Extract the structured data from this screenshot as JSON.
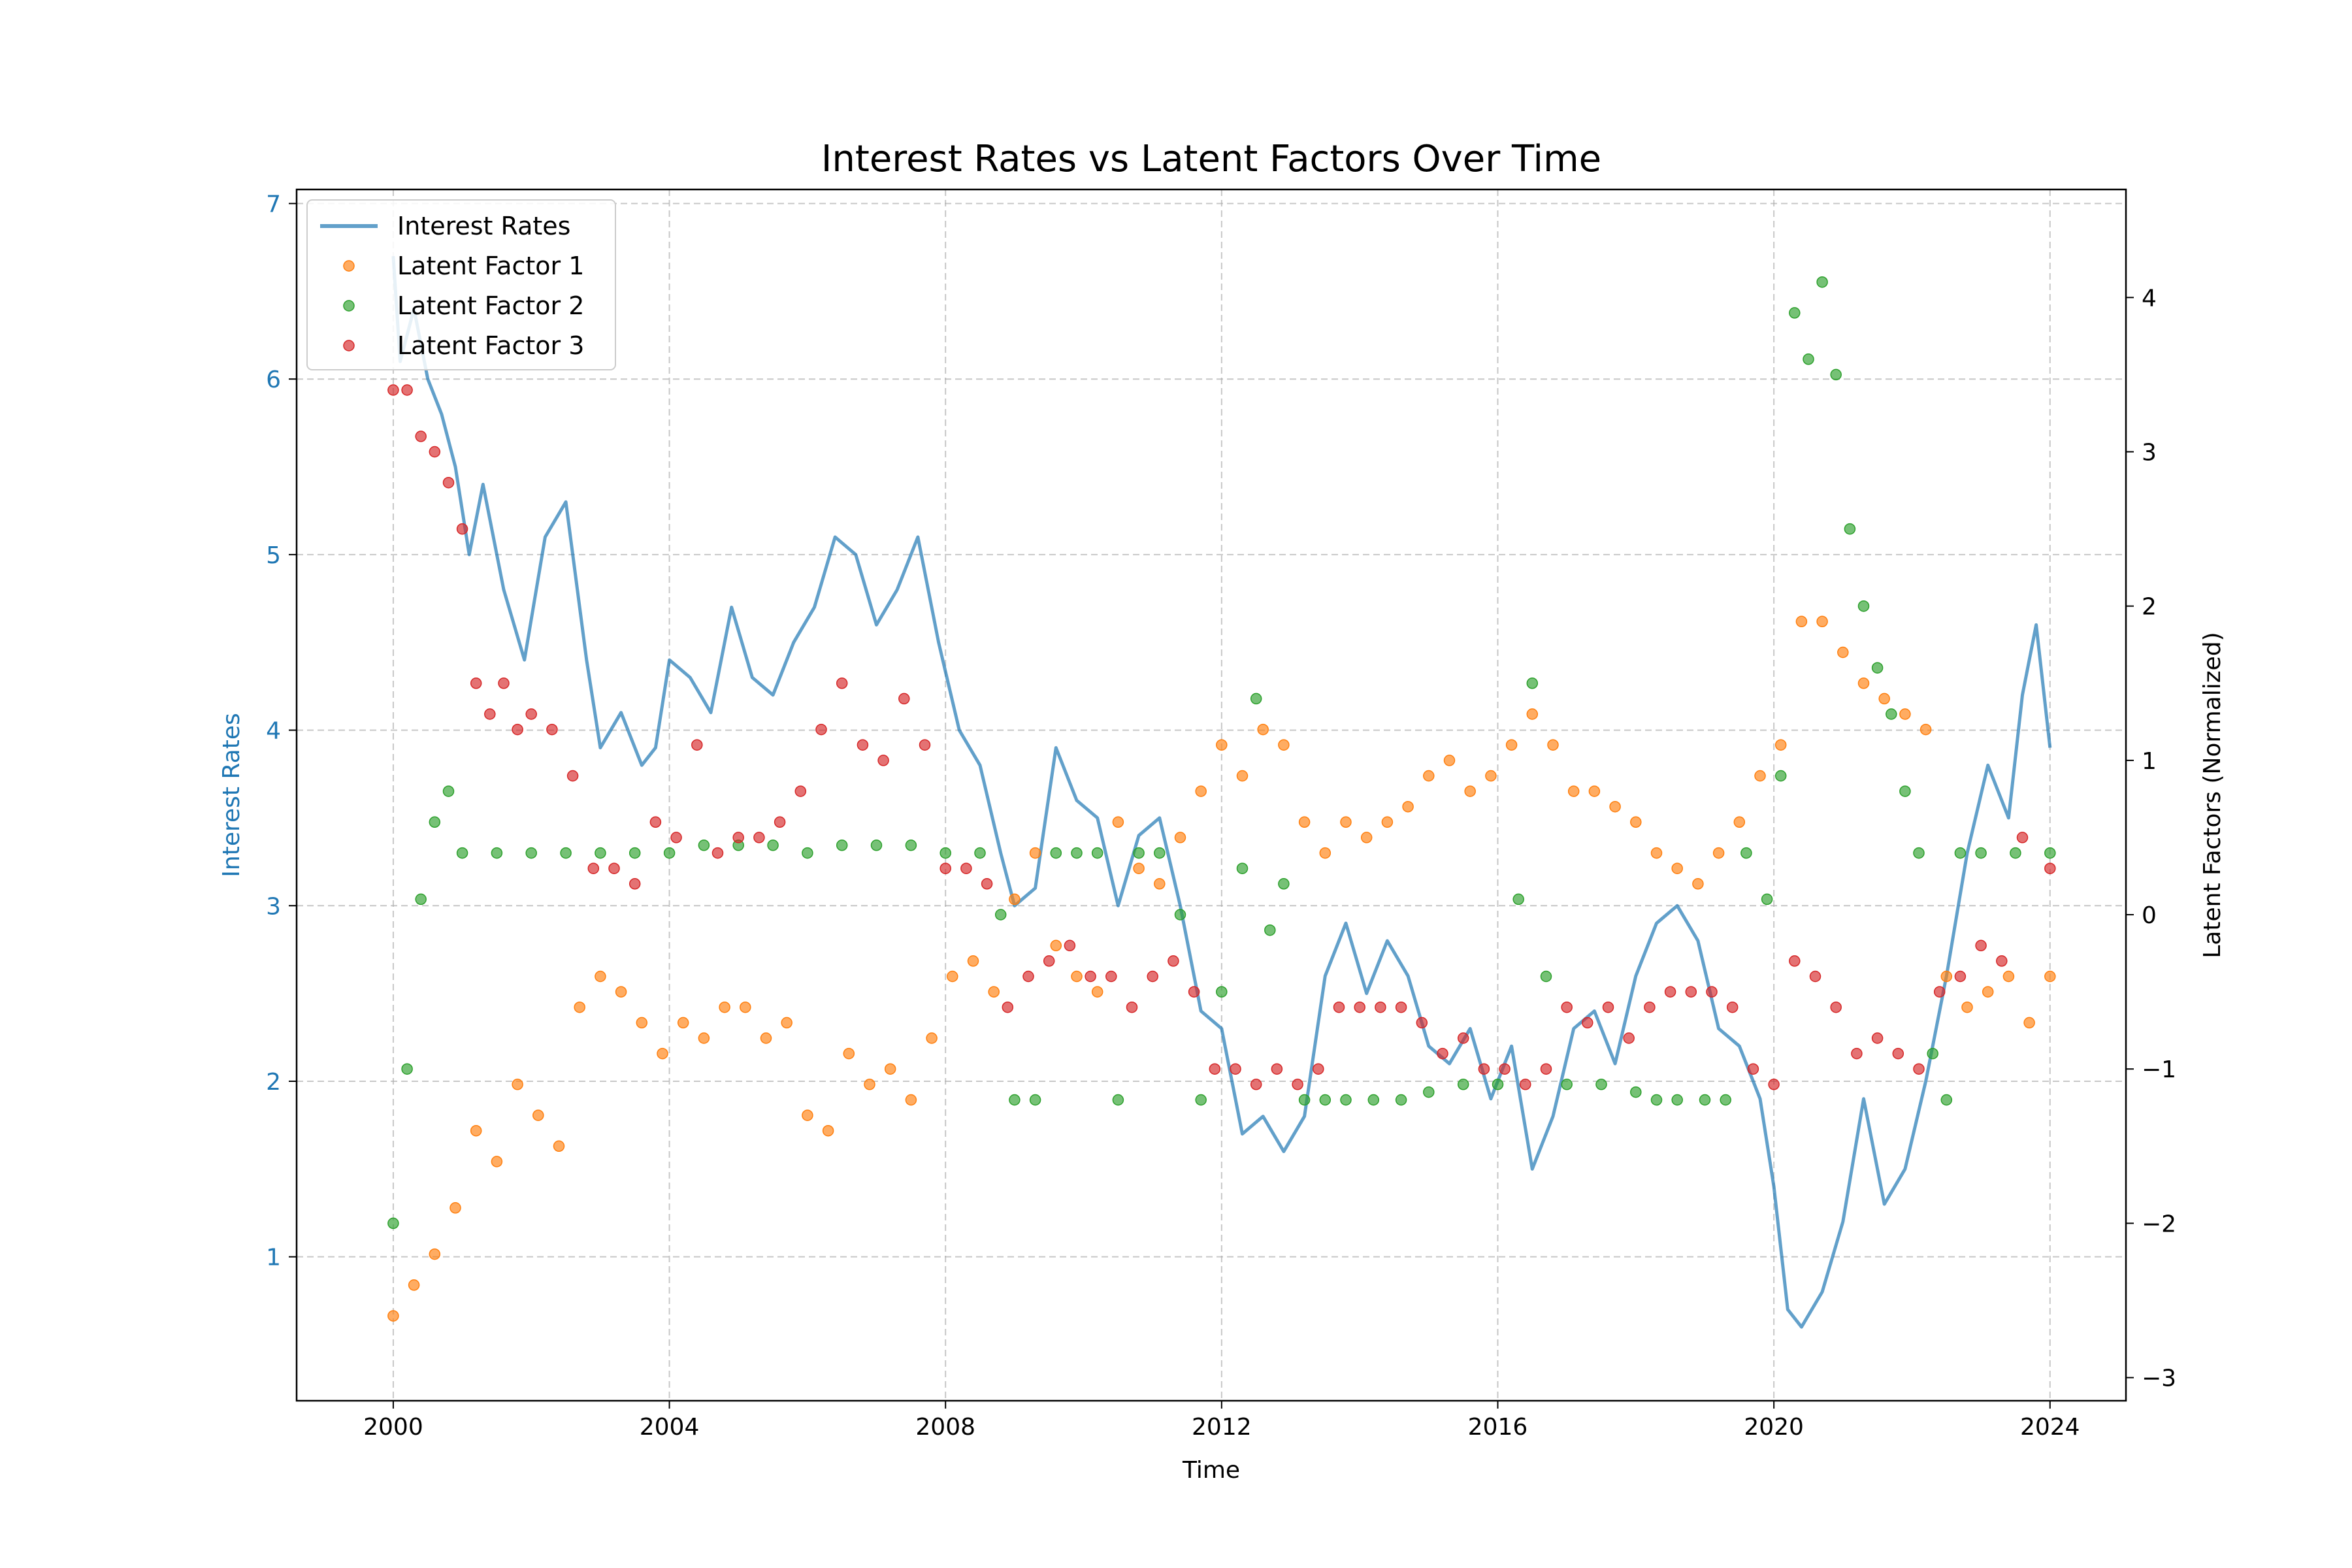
{
  "chart_data": {
    "type": "line+scatter",
    "title": "Interest Rates vs Latent Factors Over Time",
    "xlabel": "Time",
    "ylabel_left": "Interest Rates",
    "ylabel_right": "Latent Factors (Normalized)",
    "xlim": [
      1998.6,
      2025.1
    ],
    "ylim_left": [
      0.18,
      7.08
    ],
    "ylim_right": [
      -3.15,
      4.7
    ],
    "x_ticks": [
      2000,
      2004,
      2008,
      2012,
      2016,
      2020,
      2024
    ],
    "x_tick_labels": [
      "2000",
      "2004",
      "2008",
      "2012",
      "2016",
      "2020",
      "2024"
    ],
    "y_left_ticks": [
      1,
      2,
      3,
      4,
      5,
      6,
      7
    ],
    "y_left_tick_labels": [
      "1",
      "2",
      "3",
      "4",
      "5",
      "6",
      "7"
    ],
    "y_right_ticks": [
      -3,
      -2,
      -1,
      0,
      1,
      2,
      3,
      4
    ],
    "y_right_tick_labels": [
      "−3",
      "−2",
      "−1",
      "0",
      "1",
      "2",
      "3",
      "4"
    ],
    "grid": true,
    "legend_position": "upper-left",
    "colors": {
      "interest": "#1f77b4",
      "lf1": "#ff7f0e",
      "lf2": "#2ca02c",
      "lf3": "#d62728"
    },
    "series": [
      {
        "name": "Interest Rates",
        "kind": "line",
        "axis": "left",
        "x": [
          2000.0,
          2000.1,
          2000.3,
          2000.5,
          2000.7,
          2000.9,
          2001.1,
          2001.3,
          2001.6,
          2001.9,
          2002.2,
          2002.5,
          2002.8,
          2003.0,
          2003.3,
          2003.6,
          2003.8,
          2004.0,
          2004.3,
          2004.6,
          2004.9,
          2005.2,
          2005.5,
          2005.8,
          2006.1,
          2006.4,
          2006.7,
          2007.0,
          2007.3,
          2007.6,
          2007.9,
          2008.2,
          2008.5,
          2008.8,
          2009.0,
          2009.3,
          2009.6,
          2009.9,
          2010.2,
          2010.5,
          2010.8,
          2011.1,
          2011.4,
          2011.7,
          2012.0,
          2012.3,
          2012.6,
          2012.9,
          2013.2,
          2013.5,
          2013.8,
          2014.1,
          2014.4,
          2014.7,
          2015.0,
          2015.3,
          2015.6,
          2015.9,
          2016.2,
          2016.5,
          2016.8,
          2017.1,
          2017.4,
          2017.7,
          2018.0,
          2018.3,
          2018.6,
          2018.9,
          2019.2,
          2019.5,
          2019.8,
          2020.0,
          2020.2,
          2020.4,
          2020.7,
          2021.0,
          2021.3,
          2021.6,
          2021.9,
          2022.2,
          2022.5,
          2022.8,
          2023.1,
          2023.4,
          2023.6,
          2023.8,
          2024.0
        ],
        "values": [
          6.7,
          6.1,
          6.4,
          6.0,
          5.8,
          5.5,
          5.0,
          5.4,
          4.8,
          4.4,
          5.1,
          5.3,
          4.4,
          3.9,
          4.1,
          3.8,
          3.9,
          4.4,
          4.3,
          4.1,
          4.7,
          4.3,
          4.2,
          4.5,
          4.7,
          5.1,
          5.0,
          4.6,
          4.8,
          5.1,
          4.5,
          4.0,
          3.8,
          3.3,
          3.0,
          3.1,
          3.9,
          3.6,
          3.5,
          3.0,
          3.4,
          3.5,
          3.0,
          2.4,
          2.3,
          1.7,
          1.8,
          1.6,
          1.8,
          2.6,
          2.9,
          2.5,
          2.8,
          2.6,
          2.2,
          2.1,
          2.3,
          1.9,
          2.2,
          1.5,
          1.8,
          2.3,
          2.4,
          2.1,
          2.6,
          2.9,
          3.0,
          2.8,
          2.3,
          2.2,
          1.9,
          1.4,
          0.7,
          0.6,
          0.8,
          1.2,
          1.9,
          1.3,
          1.5,
          2.0,
          2.6,
          3.3,
          3.8,
          3.5,
          4.2,
          4.6,
          3.9
        ]
      },
      {
        "name": "Latent Factor 1",
        "kind": "scatter",
        "axis": "right",
        "x": [
          2000.0,
          2000.3,
          2000.6,
          2000.9,
          2001.2,
          2001.5,
          2001.8,
          2002.1,
          2002.4,
          2002.7,
          2003.0,
          2003.3,
          2003.6,
          2003.9,
          2004.2,
          2004.5,
          2004.8,
          2005.1,
          2005.4,
          2005.7,
          2006.0,
          2006.3,
          2006.6,
          2006.9,
          2007.2,
          2007.5,
          2007.8,
          2008.1,
          2008.4,
          2008.7,
          2009.0,
          2009.3,
          2009.6,
          2009.9,
          2010.2,
          2010.5,
          2010.8,
          2011.1,
          2011.4,
          2011.7,
          2012.0,
          2012.3,
          2012.6,
          2012.9,
          2013.2,
          2013.5,
          2013.8,
          2014.1,
          2014.4,
          2014.7,
          2015.0,
          2015.3,
          2015.6,
          2015.9,
          2016.2,
          2016.5,
          2016.8,
          2017.1,
          2017.4,
          2017.7,
          2018.0,
          2018.3,
          2018.6,
          2018.9,
          2019.2,
          2019.5,
          2019.8,
          2020.1,
          2020.4,
          2020.7,
          2021.0,
          2021.3,
          2021.6,
          2021.9,
          2022.2,
          2022.5,
          2022.8,
          2023.1,
          2023.4,
          2023.7,
          2024.0
        ],
        "values": [
          -2.6,
          -2.4,
          -2.2,
          -1.9,
          -1.4,
          -1.6,
          -1.1,
          -1.3,
          -1.5,
          -0.6,
          -0.4,
          -0.5,
          -0.7,
          -0.9,
          -0.7,
          -0.8,
          -0.6,
          -0.6,
          -0.8,
          -0.7,
          -1.3,
          -1.4,
          -0.9,
          -1.1,
          -1.0,
          -1.2,
          -0.8,
          -0.4,
          -0.3,
          -0.5,
          0.1,
          0.4,
          -0.2,
          -0.4,
          -0.5,
          0.6,
          0.3,
          0.2,
          0.5,
          0.8,
          1.1,
          0.9,
          1.2,
          1.1,
          0.6,
          0.4,
          0.6,
          0.5,
          0.6,
          0.7,
          0.9,
          1.0,
          0.8,
          0.9,
          1.1,
          1.3,
          1.1,
          0.8,
          0.8,
          0.7,
          0.6,
          0.4,
          0.3,
          0.2,
          0.4,
          0.6,
          0.9,
          1.1,
          1.9,
          1.9,
          1.7,
          1.5,
          1.4,
          1.3,
          1.2,
          -0.4,
          -0.6,
          -0.5,
          -0.4,
          -0.7,
          -0.4
        ]
      },
      {
        "name": "Latent Factor 2",
        "kind": "scatter",
        "axis": "right",
        "x": [
          2000.0,
          2000.2,
          2000.4,
          2000.6,
          2000.8,
          2001.0,
          2001.5,
          2002.0,
          2002.5,
          2003.0,
          2003.5,
          2004.0,
          2004.5,
          2005.0,
          2005.5,
          2006.0,
          2006.5,
          2007.0,
          2007.5,
          2008.0,
          2008.5,
          2008.8,
          2009.0,
          2009.3,
          2009.6,
          2009.9,
          2010.2,
          2010.5,
          2010.8,
          2011.1,
          2011.4,
          2011.7,
          2012.0,
          2012.3,
          2012.5,
          2012.7,
          2012.9,
          2013.2,
          2013.5,
          2013.8,
          2014.2,
          2014.6,
          2015.0,
          2015.5,
          2016.0,
          2016.3,
          2016.5,
          2016.7,
          2017.0,
          2017.5,
          2018.0,
          2018.3,
          2018.6,
          2019.0,
          2019.3,
          2019.6,
          2019.9,
          2020.1,
          2020.3,
          2020.5,
          2020.7,
          2020.9,
          2021.1,
          2021.3,
          2021.5,
          2021.7,
          2021.9,
          2022.1,
          2022.3,
          2022.5,
          2022.7,
          2023.0,
          2023.5,
          2024.0
        ],
        "values": [
          -2.0,
          -1.0,
          0.1,
          0.6,
          0.8,
          0.4,
          0.4,
          0.4,
          0.4,
          0.4,
          0.4,
          0.4,
          0.45,
          0.45,
          0.45,
          0.4,
          0.45,
          0.45,
          0.45,
          0.4,
          0.4,
          0.0,
          -1.2,
          -1.2,
          0.4,
          0.4,
          0.4,
          -1.2,
          0.4,
          0.4,
          0.0,
          -1.2,
          -0.5,
          0.3,
          1.4,
          -0.1,
          0.2,
          -1.2,
          -1.2,
          -1.2,
          -1.2,
          -1.2,
          -1.15,
          -1.1,
          -1.1,
          0.1,
          1.5,
          -0.4,
          -1.1,
          -1.1,
          -1.15,
          -1.2,
          -1.2,
          -1.2,
          -1.2,
          0.4,
          0.1,
          0.9,
          3.9,
          3.6,
          4.1,
          3.5,
          2.5,
          2.0,
          1.6,
          1.3,
          0.8,
          0.4,
          -0.9,
          -1.2,
          0.4,
          0.4,
          0.4,
          0.4
        ]
      },
      {
        "name": "Latent Factor 3",
        "kind": "scatter",
        "axis": "right",
        "x": [
          2000.0,
          2000.2,
          2000.4,
          2000.6,
          2000.8,
          2001.0,
          2001.2,
          2001.4,
          2001.6,
          2001.8,
          2002.0,
          2002.3,
          2002.6,
          2002.9,
          2003.2,
          2003.5,
          2003.8,
          2004.1,
          2004.4,
          2004.7,
          2005.0,
          2005.3,
          2005.6,
          2005.9,
          2006.2,
          2006.5,
          2006.8,
          2007.1,
          2007.4,
          2007.7,
          2008.0,
          2008.3,
          2008.6,
          2008.9,
          2009.2,
          2009.5,
          2009.8,
          2010.1,
          2010.4,
          2010.7,
          2011.0,
          2011.3,
          2011.6,
          2011.9,
          2012.2,
          2012.5,
          2012.8,
          2013.1,
          2013.4,
          2013.7,
          2014.0,
          2014.3,
          2014.6,
          2014.9,
          2015.2,
          2015.5,
          2015.8,
          2016.1,
          2016.4,
          2016.7,
          2017.0,
          2017.3,
          2017.6,
          2017.9,
          2018.2,
          2018.5,
          2018.8,
          2019.1,
          2019.4,
          2019.7,
          2020.0,
          2020.3,
          2020.6,
          2020.9,
          2021.2,
          2021.5,
          2021.8,
          2022.1,
          2022.4,
          2022.7,
          2023.0,
          2023.3,
          2023.6,
          2024.0
        ],
        "values": [
          3.4,
          3.4,
          3.1,
          3.0,
          2.8,
          2.5,
          1.5,
          1.3,
          1.5,
          1.2,
          1.3,
          1.2,
          0.9,
          0.3,
          0.3,
          0.2,
          0.6,
          0.5,
          1.1,
          0.4,
          0.5,
          0.5,
          0.6,
          0.8,
          1.2,
          1.5,
          1.1,
          1.0,
          1.4,
          1.1,
          0.3,
          0.3,
          0.2,
          -0.6,
          -0.4,
          -0.3,
          -0.2,
          -0.4,
          -0.4,
          -0.6,
          -0.4,
          -0.3,
          -0.5,
          -1.0,
          -1.0,
          -1.1,
          -1.0,
          -1.1,
          -1.0,
          -0.6,
          -0.6,
          -0.6,
          -0.6,
          -0.7,
          -0.9,
          -0.8,
          -1.0,
          -1.0,
          -1.1,
          -1.0,
          -0.6,
          -0.7,
          -0.6,
          -0.8,
          -0.6,
          -0.5,
          -0.5,
          -0.5,
          -0.6,
          -1.0,
          -1.1,
          -0.3,
          -0.4,
          -0.6,
          -0.9,
          -0.8,
          -0.9,
          -1.0,
          -0.5,
          -0.4,
          -0.2,
          -0.3,
          0.5,
          0.3
        ]
      }
    ]
  }
}
